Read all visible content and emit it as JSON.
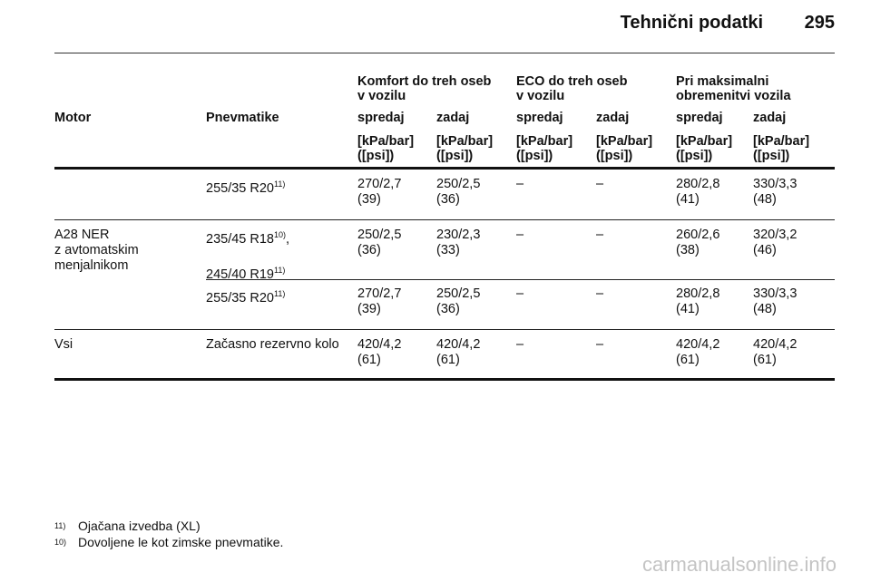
{
  "header": {
    "title": "Tehnični podatki",
    "page_number": "295"
  },
  "groups": [
    "Komfort do treh oseb v vozilu",
    "ECO do treh oseb v vozilu",
    "Pri maksimalni obremenitvi vozila"
  ],
  "groups_lines": [
    [
      "Komfort do treh oseb",
      "v vozilu"
    ],
    [
      "ECO do treh oseb",
      "v vozilu"
    ],
    [
      "Pri maksimalni",
      "obremenitvi vozila"
    ]
  ],
  "columns": {
    "motor": "Motor",
    "tires": "Pnevmatike",
    "front": "spredaj",
    "rear": "zadaj"
  },
  "unit": {
    "line1": "[kPa/bar]",
    "line2": "([psi])"
  },
  "rows": [
    {
      "motor": [],
      "tire": "255/35 R20",
      "tire_sup": "11)",
      "values": [
        [
          "270/2,7",
          "(39)"
        ],
        [
          "250/2,5",
          "(36)"
        ],
        [
          "–",
          ""
        ],
        [
          "–",
          ""
        ],
        [
          "280/2,8",
          "(41)"
        ],
        [
          "330/3,3",
          "(48)"
        ]
      ]
    },
    {
      "motor": [
        "A28 NER",
        "z avtomatskim",
        "menjalnikom"
      ],
      "tire": "235/45 R18",
      "tire_sup": "10)",
      "tire_suffix": ",",
      "tire2": "245/40 R19",
      "tire2_sup": "11)",
      "values": [
        [
          "250/2,5",
          "(36)"
        ],
        [
          "230/2,3",
          "(33)"
        ],
        [
          "–",
          ""
        ],
        [
          "–",
          ""
        ],
        [
          "260/2,6",
          "(38)"
        ],
        [
          "320/3,2",
          "(46)"
        ]
      ]
    },
    {
      "motor": [],
      "tire": "255/35 R20",
      "tire_sup": "11)",
      "values": [
        [
          "270/2,7",
          "(39)"
        ],
        [
          "250/2,5",
          "(36)"
        ],
        [
          "–",
          ""
        ],
        [
          "–",
          ""
        ],
        [
          "280/2,8",
          "(41)"
        ],
        [
          "330/3,3",
          "(48)"
        ]
      ]
    },
    {
      "motor": [
        "Vsi"
      ],
      "tire": "Začasno rezervno kolo",
      "tire_sup": "",
      "values": [
        [
          "420/4,2",
          "(61)"
        ],
        [
          "420/4,2",
          "(61)"
        ],
        [
          "–",
          ""
        ],
        [
          "–",
          ""
        ],
        [
          "420/4,2",
          "(61)"
        ],
        [
          "420/4,2",
          "(61)"
        ]
      ]
    }
  ],
  "footnotes": [
    {
      "mark": "11)",
      "text": "Ojačana izvedba (XL)"
    },
    {
      "mark": "10)",
      "text": "Dovoljene le kot zimske pnevmatike."
    }
  ],
  "watermark": "carmanualsonline.info"
}
